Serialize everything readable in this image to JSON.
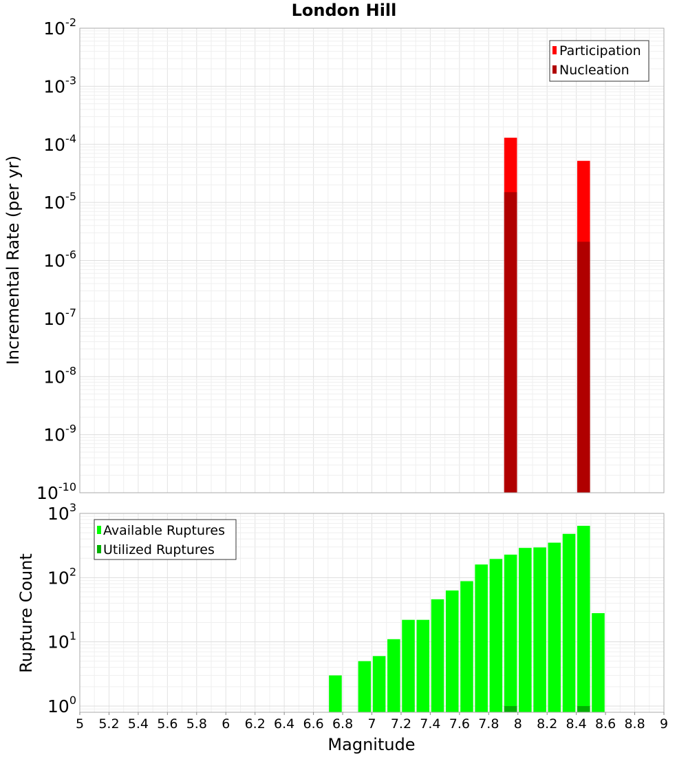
{
  "chart_data": [
    {
      "type": "bar",
      "title": "London Hill",
      "xlabel": "",
      "ylabel": "Incremental Rate (per yr)",
      "xlim": [
        5,
        9
      ],
      "ylim": [
        1e-10,
        0.01
      ],
      "yscale": "log",
      "yticks": [
        {
          "base": "10",
          "exp": "-2",
          "value": 0.01
        },
        {
          "base": "10",
          "exp": "-3",
          "value": 0.001
        },
        {
          "base": "10",
          "exp": "-4",
          "value": 0.0001
        },
        {
          "base": "10",
          "exp": "-5",
          "value": 1e-05
        },
        {
          "base": "10",
          "exp": "-6",
          "value": 1e-06
        },
        {
          "base": "10",
          "exp": "-7",
          "value": 1e-07
        },
        {
          "base": "10",
          "exp": "-8",
          "value": 1e-08
        },
        {
          "base": "10",
          "exp": "-9",
          "value": 1e-09
        },
        {
          "base": "10",
          "exp": "-10",
          "value": 1e-10
        }
      ],
      "grid": true,
      "legend_position": "top-right",
      "series": [
        {
          "name": "Participation",
          "color": "#ff0000",
          "x": [
            7.95,
            8.45
          ],
          "values": [
            0.00013,
            5.2e-05
          ]
        },
        {
          "name": "Nucleation",
          "color": "#b00000",
          "x": [
            7.95,
            8.45
          ],
          "values": [
            1.5e-05,
            2.1e-06
          ]
        }
      ]
    },
    {
      "type": "bar",
      "title": "",
      "xlabel": "Magnitude",
      "ylabel": "Rupture Count",
      "xlim": [
        5,
        9
      ],
      "ylim": [
        0.8,
        1000
      ],
      "yscale": "log",
      "yticks": [
        {
          "base": "10",
          "exp": "3",
          "value": 1000
        },
        {
          "base": "10",
          "exp": "2",
          "value": 100
        },
        {
          "base": "10",
          "exp": "1",
          "value": 10
        },
        {
          "base": "10",
          "exp": "0",
          "value": 1
        }
      ],
      "xticks": [
        "5",
        "5.2",
        "5.4",
        "5.6",
        "5.8",
        "6",
        "6.2",
        "6.4",
        "6.6",
        "6.8",
        "7",
        "7.2",
        "7.4",
        "7.6",
        "7.8",
        "8",
        "8.2",
        "8.4",
        "8.6",
        "8.8",
        "9"
      ],
      "grid": true,
      "legend_position": "top-left",
      "series": [
        {
          "name": "Available Ruptures",
          "color": "#00ff00",
          "x": [
            6.75,
            6.95,
            7.05,
            7.15,
            7.25,
            7.35,
            7.45,
            7.55,
            7.65,
            7.75,
            7.85,
            7.95,
            8.05,
            8.15,
            8.25,
            8.35,
            8.45,
            8.55
          ],
          "values": [
            3,
            5,
            6,
            11,
            22,
            22,
            46,
            63,
            88,
            160,
            195,
            228,
            290,
            295,
            350,
            480,
            640,
            28
          ]
        },
        {
          "name": "Utilized Ruptures",
          "color": "#00b000",
          "x": [
            7.95,
            8.45
          ],
          "values": [
            1,
            1
          ]
        }
      ]
    }
  ]
}
